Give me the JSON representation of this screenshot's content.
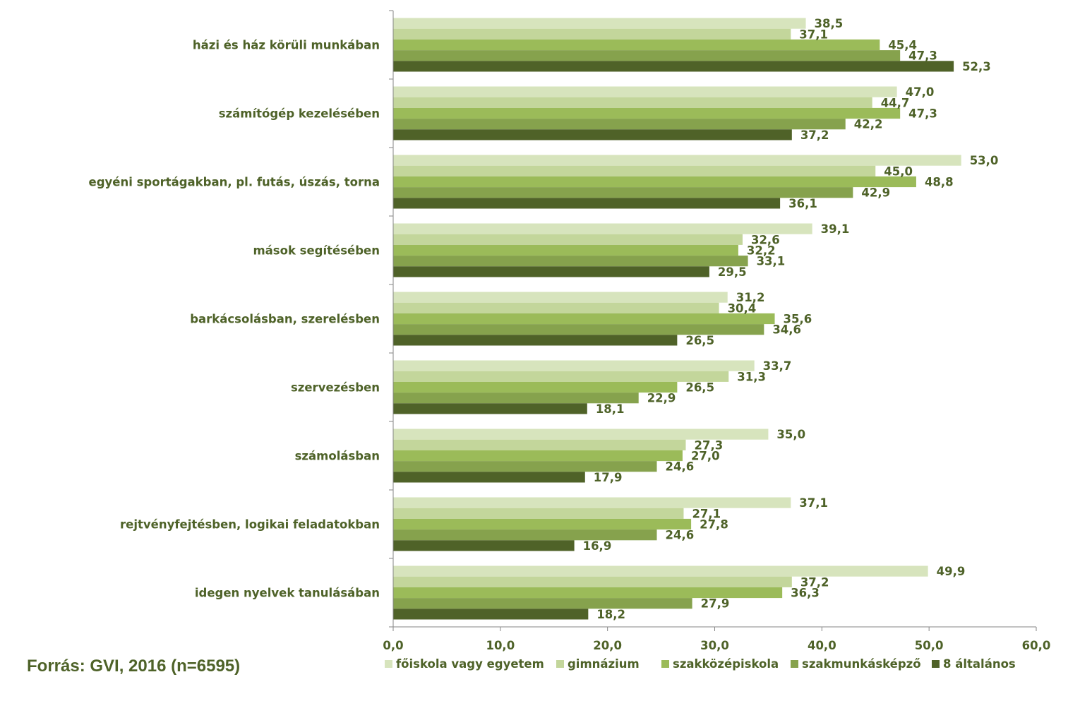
{
  "source_note": "Forrás: GVI, 2016 (n=6595)",
  "chart_data": {
    "type": "bar",
    "orientation": "horizontal",
    "categories": [
      "házi és ház körüli munkában",
      "számítógép kezelésében",
      "egyéni sportágakban, pl. futás, úszás, torna",
      "mások segítésében",
      "barkácsolásban, szerelésben",
      "szervezésben",
      "számolásban",
      "rejtvényfejtésben, logikai feladatokban",
      "idegen nyelvek tanulásában"
    ],
    "series": [
      {
        "name": "főiskola vagy egyetem",
        "color": "#d7e4bd",
        "values": [
          38.5,
          47.0,
          53.0,
          39.1,
          31.2,
          33.7,
          35.0,
          37.1,
          49.9
        ],
        "labels": [
          "38,5",
          "47,0",
          "53,0",
          "39,1",
          "31,2",
          "33,7",
          "35,0",
          "37,1",
          "49,9"
        ]
      },
      {
        "name": "gimnázium",
        "color": "#c3d69b",
        "values": [
          37.1,
          44.7,
          45.0,
          32.6,
          30.4,
          31.3,
          27.3,
          27.1,
          37.2
        ],
        "labels": [
          "37,1",
          "44,7",
          "45,0",
          "32,6",
          "30,4",
          "31,3",
          "27,3",
          "27,1",
          "37,2"
        ]
      },
      {
        "name": "szakközépiskola",
        "color": "#9bbb59",
        "values": [
          45.4,
          47.3,
          48.8,
          32.2,
          35.6,
          26.5,
          27.0,
          27.8,
          36.3
        ],
        "labels": [
          "45,4",
          "47,3",
          "48,8",
          "32,2",
          "35,6",
          "26,5",
          "27,0",
          "27,8",
          "36,3"
        ]
      },
      {
        "name": "szakmunkásképző",
        "color": "#86a24d",
        "values": [
          47.3,
          42.2,
          42.9,
          33.1,
          34.6,
          22.9,
          24.6,
          24.6,
          27.9
        ],
        "labels": [
          "47,3",
          "42,2",
          "42,9",
          "33,1",
          "34,6",
          "22,9",
          "24,6",
          "24,6",
          "27,9"
        ]
      },
      {
        "name": "8 általános",
        "color": "#4f6228",
        "values": [
          52.3,
          37.2,
          36.1,
          29.5,
          26.5,
          18.1,
          17.9,
          16.9,
          18.2
        ],
        "labels": [
          "52,3",
          "37,2",
          "36,1",
          "29,5",
          "26,5",
          "18,1",
          "17,9",
          "16,9",
          "18,2"
        ]
      }
    ],
    "xlim": [
      0,
      60
    ],
    "xticks": [
      0,
      10,
      20,
      30,
      40,
      50,
      60
    ],
    "xtick_labels": [
      "0,0",
      "10,0",
      "20,0",
      "30,0",
      "40,0",
      "50,0",
      "60,0"
    ],
    "grid": false,
    "legend_position": "bottom",
    "text_color": "#4e6228",
    "axis_color": "#868686"
  }
}
